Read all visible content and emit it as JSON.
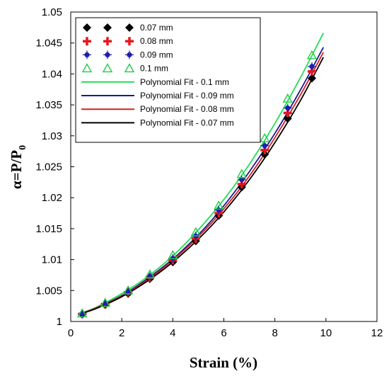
{
  "chart_data": {
    "type": "scatter",
    "xlabel": "Strain (%)",
    "ylabel": "α=P/P",
    "ylabel_subscript": "0",
    "xlim": [
      0,
      12
    ],
    "ylim": [
      1,
      1.05
    ],
    "xticks": [
      "0",
      "2",
      "4",
      "6",
      "8",
      "10",
      "12"
    ],
    "yticks": [
      "1",
      "1.005",
      "1.01",
      "1.015",
      "1.02",
      "1.025",
      "1.03",
      "1.035",
      "1.04",
      "1.045",
      "1.05"
    ],
    "grid": false,
    "legend_position": "top-left",
    "series": [
      {
        "name": "0.07 mm",
        "kind": "markers",
        "marker": "diamond",
        "color": "#000000",
        "x": [
          0.45,
          1.35,
          2.25,
          3.1,
          4.0,
          4.9,
          5.8,
          6.7,
          7.6,
          8.5,
          9.45
        ],
        "y": [
          1.0012,
          1.0027,
          1.0045,
          1.0069,
          1.0096,
          1.013,
          1.0171,
          1.0217,
          1.027,
          1.0328,
          1.0393
        ]
      },
      {
        "name": "0.08 mm",
        "kind": "markers",
        "marker": "plus",
        "color": "#e8161b",
        "x": [
          0.45,
          1.35,
          2.25,
          3.1,
          4.0,
          4.9,
          5.8,
          6.7,
          7.6,
          8.5,
          9.45
        ],
        "y": [
          1.0012,
          1.0028,
          1.0047,
          1.0071,
          1.0099,
          1.0134,
          1.0175,
          1.0222,
          1.0277,
          1.0337,
          1.0404
        ]
      },
      {
        "name": "0.09 mm",
        "kind": "markers",
        "marker": "star",
        "color": "#1c1fb0",
        "x": [
          0.45,
          1.35,
          2.25,
          3.1,
          4.0,
          4.9,
          5.8,
          6.7,
          7.6,
          8.5,
          9.45
        ],
        "y": [
          1.0012,
          1.0029,
          1.0048,
          1.0073,
          1.0102,
          1.0138,
          1.018,
          1.0229,
          1.0284,
          1.0345,
          1.0412
        ]
      },
      {
        "name": "0.1 mm",
        "kind": "markers",
        "marker": "triangle",
        "color": "#22cc44",
        "x": [
          0.45,
          1.35,
          2.25,
          3.1,
          4.0,
          4.9,
          5.8,
          6.7,
          7.6,
          8.5,
          9.45
        ],
        "y": [
          1.0013,
          1.003,
          1.005,
          1.0076,
          1.0107,
          1.0144,
          1.0187,
          1.0238,
          1.0296,
          1.036,
          1.043
        ]
      },
      {
        "name": "Polynomial Fit - 0.1 mm",
        "kind": "line",
        "color": "#22dd55",
        "x": [
          0.3,
          1.0,
          2.0,
          3.0,
          4.0,
          5.0,
          6.0,
          7.0,
          8.0,
          9.0,
          9.9
        ],
        "y": [
          1.0012,
          1.0023,
          1.0045,
          1.0072,
          1.0106,
          1.0148,
          1.0197,
          1.0254,
          1.032,
          1.0394,
          1.0466
        ]
      },
      {
        "name": "Polynomial Fit - 0.09 mm",
        "kind": "line",
        "color": "#1a1a8c",
        "x": [
          0.3,
          1.0,
          2.0,
          3.0,
          4.0,
          5.0,
          6.0,
          7.0,
          8.0,
          9.0,
          9.9
        ],
        "y": [
          1.0011,
          1.0022,
          1.0042,
          1.0069,
          1.0101,
          1.014,
          1.0187,
          1.0242,
          1.0304,
          1.0374,
          1.0443
        ]
      },
      {
        "name": "Polynomial Fit - 0.08 mm",
        "kind": "line",
        "color": "#d42020",
        "x": [
          0.3,
          1.0,
          2.0,
          3.0,
          4.0,
          5.0,
          6.0,
          7.0,
          8.0,
          9.0,
          9.9
        ],
        "y": [
          1.0011,
          1.0022,
          1.0041,
          1.0067,
          1.0099,
          1.0137,
          1.0182,
          1.0235,
          1.0297,
          1.0366,
          1.0435
        ]
      },
      {
        "name": "Polynomial Fit - 0.07 mm",
        "kind": "line",
        "color": "#000000",
        "x": [
          0.3,
          1.0,
          2.0,
          3.0,
          4.0,
          5.0,
          6.0,
          7.0,
          8.0,
          9.0,
          9.9
        ],
        "y": [
          1.0011,
          1.0021,
          1.004,
          1.0065,
          1.0096,
          1.0133,
          1.0177,
          1.0229,
          1.0289,
          1.0357,
          1.0427
        ]
      }
    ]
  }
}
